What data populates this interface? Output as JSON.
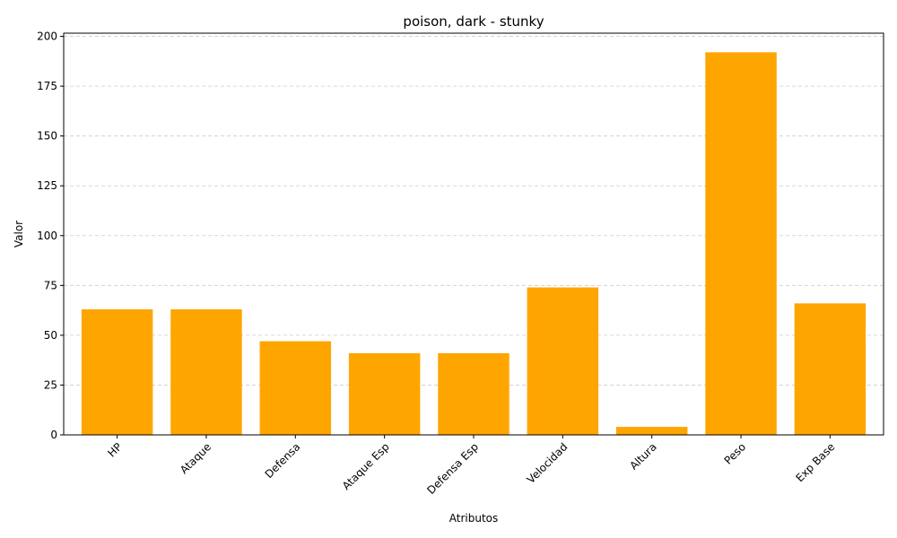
{
  "chart_data": {
    "type": "bar",
    "title": "poison, dark - stunky",
    "xlabel": "Atributos",
    "ylabel": "Valor",
    "categories": [
      "HP",
      "Ataque",
      "Defensa",
      "Ataque Esp",
      "Defensa Esp",
      "Velocidad",
      "Altura",
      "Peso",
      "Exp Base"
    ],
    "values": [
      63,
      63,
      47,
      41,
      41,
      74,
      4,
      192,
      66
    ],
    "ylim": [
      0,
      201.6
    ],
    "yticks": [
      0,
      25,
      50,
      75,
      100,
      125,
      150,
      175,
      200
    ],
    "grid": "y",
    "bar_color": "#ffa500",
    "tick_label_rotation": 45
  }
}
